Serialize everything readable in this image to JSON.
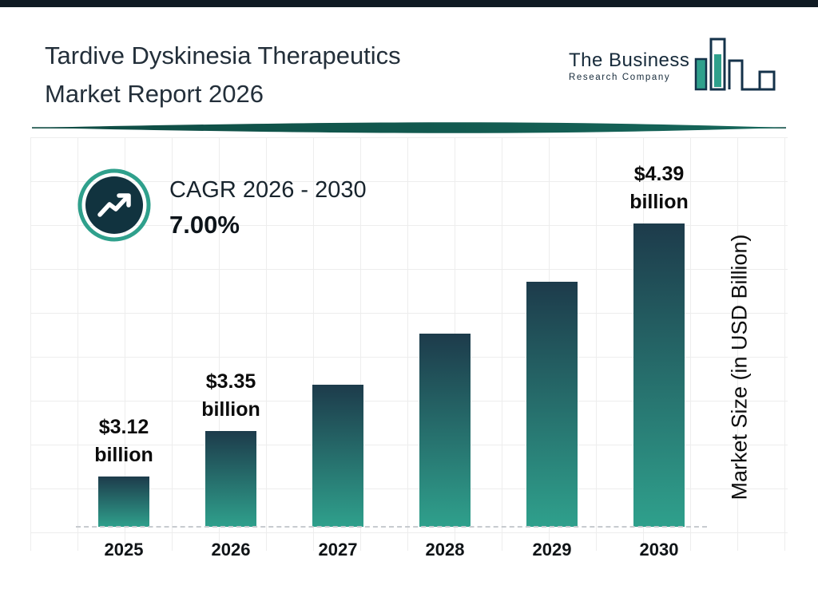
{
  "header": {
    "title_line1": "Tardive Dyskinesia Therapeutics",
    "title_line2": "Market Report 2026",
    "logo": {
      "line1": "The Business",
      "line2": "Research Company"
    }
  },
  "cagr": {
    "label": "CAGR 2026 - 2030",
    "value": "7.00%"
  },
  "chart_data": {
    "type": "bar",
    "categories": [
      "2025",
      "2026",
      "2027",
      "2028",
      "2029",
      "2030"
    ],
    "values": [
      3.12,
      3.35,
      3.58,
      3.84,
      4.1,
      4.39
    ],
    "labels": [
      [
        "$3.12",
        "billion"
      ],
      [
        "$3.35",
        "billion"
      ],
      null,
      null,
      null,
      [
        "$4.39",
        "billion"
      ]
    ],
    "title": "",
    "xlabel": "",
    "ylabel": "Market Size (in USD Billion)",
    "ylim": [
      2.87,
      4.75
    ],
    "grid": true,
    "legend": "none",
    "units": "USD Billion"
  },
  "colors": {
    "bar_top": "#1d3b4b",
    "bar_bottom": "#2fa08c",
    "accent_teal": "#2fa08c",
    "divider_dark": "#0e4a42",
    "divider_light": "#16675b",
    "circle_fill": "#11333f",
    "top_border": "#101b23"
  }
}
